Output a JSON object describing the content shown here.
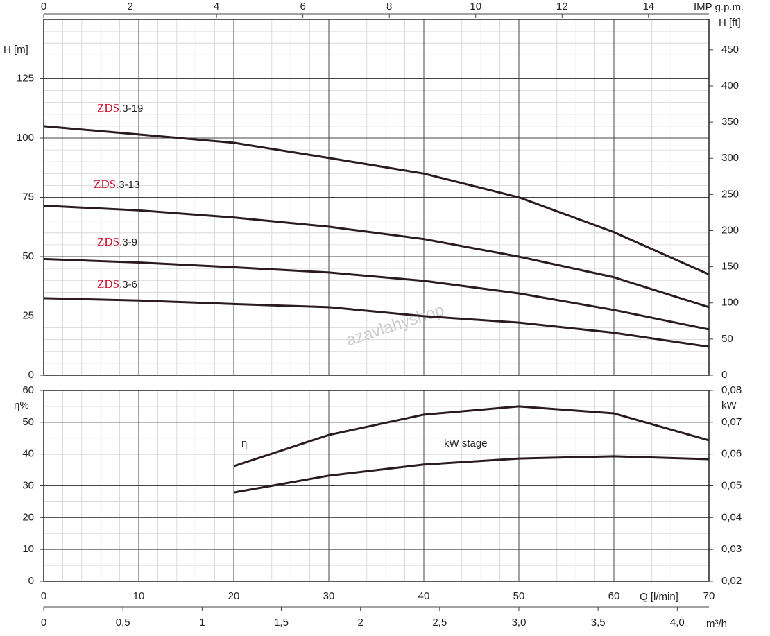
{
  "chart_data": [
    {
      "type": "line",
      "ylabel": "H [m]",
      "y2label": "H [ft]",
      "x2label": "IMP g.p.m.",
      "x": [
        0,
        10,
        20,
        30,
        40,
        50,
        60,
        70
      ],
      "xlim": [
        0,
        70
      ],
      "x2lim": [
        0,
        15.4
      ],
      "x2ticks": [
        0,
        2,
        4,
        6,
        8,
        10,
        12,
        14
      ],
      "ylim": [
        0,
        150
      ],
      "yticks": [
        0,
        25,
        50,
        75,
        100,
        125
      ],
      "y2lim": [
        0,
        492.1
      ],
      "y2ticks": [
        0,
        50,
        100,
        150,
        200,
        250,
        300,
        350,
        400,
        450
      ],
      "grid": true,
      "watermark": "azavlahyshop",
      "series": [
        {
          "name": "ZDS.3-19",
          "color": "#2a1a22",
          "values": [
            105,
            101.5,
            98,
            91.6,
            85,
            75,
            60.3,
            42.5
          ]
        },
        {
          "name": "ZDS.3-13",
          "color": "#2a1a22",
          "values": [
            71.5,
            69.5,
            66.5,
            62.6,
            57.4,
            50,
            41.3,
            28.7
          ]
        },
        {
          "name": "ZDS.3-9",
          "color": "#2a1a22",
          "values": [
            49,
            47.5,
            45.5,
            43.3,
            39.8,
            34.5,
            27.5,
            19.3
          ]
        },
        {
          "name": "ZDS.3-6",
          "color": "#2a1a22",
          "values": [
            32.5,
            31.5,
            30,
            28.7,
            24.9,
            22.2,
            17.9,
            12
          ]
        }
      ]
    },
    {
      "type": "line",
      "ylabel": "η%",
      "y2label": "kW",
      "xlabel": "Q [l/min]",
      "x2label": "m³/h",
      "x": [
        0,
        10,
        20,
        30,
        40,
        50,
        60,
        70
      ],
      "xlim": [
        0,
        70
      ],
      "xticks": [
        0,
        10,
        20,
        30,
        40,
        50,
        60,
        70
      ],
      "x2lim": [
        0,
        4.2
      ],
      "x2ticks": [
        0,
        {
          "value": 0.5,
          "label": "0,5"
        },
        1,
        {
          "value": 1.5,
          "label": "1,5"
        },
        2,
        {
          "value": 2.5,
          "label": "2,5"
        },
        {
          "value": 3,
          "label": "3,0"
        },
        {
          "value": 3.5,
          "label": "3,5"
        },
        {
          "value": 4,
          "label": "4,0"
        }
      ],
      "ylim": [
        0,
        60
      ],
      "yticks": [
        0,
        10,
        20,
        30,
        40,
        50,
        60
      ],
      "y2lim": [
        0.02,
        0.08
      ],
      "y2ticks": [
        {
          "value": 0.02,
          "label": "0,02"
        },
        {
          "value": 0.03,
          "label": "0,03"
        },
        {
          "value": 0.04,
          "label": "0,04"
        },
        {
          "value": 0.05,
          "label": "0,05"
        },
        {
          "value": 0.06,
          "label": "0,06"
        },
        {
          "value": 0.07,
          "label": "0,07"
        },
        {
          "value": 0.08,
          "label": "0,08"
        }
      ],
      "grid": true,
      "series": [
        {
          "name": "η",
          "color": "#2a1a22",
          "values": [
            null,
            null,
            36.2,
            46,
            52.4,
            55,
            52.8,
            44.3
          ]
        },
        {
          "name": "kW stage",
          "color": "#2a1a22",
          "axis": "y2",
          "values": [
            null,
            null,
            0.0479,
            0.0532,
            0.0567,
            0.0586,
            0.0593,
            0.0584
          ]
        }
      ]
    }
  ]
}
